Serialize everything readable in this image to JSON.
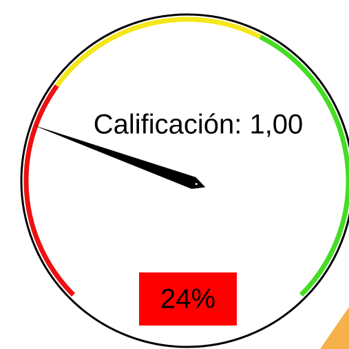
{
  "chart_data": {
    "type": "gauge",
    "title": "Calificación: 1,00",
    "value": 24,
    "value_labels": [
      "24%"
    ],
    "ylim": [
      0,
      100
    ],
    "bands": [
      {
        "from": 0,
        "to": 30,
        "color": "#ee1111"
      },
      {
        "from": 30,
        "to": 60,
        "color": "#f5e61a"
      },
      {
        "from": 60,
        "to": 100,
        "color": "#44dd22"
      }
    ]
  }
}
